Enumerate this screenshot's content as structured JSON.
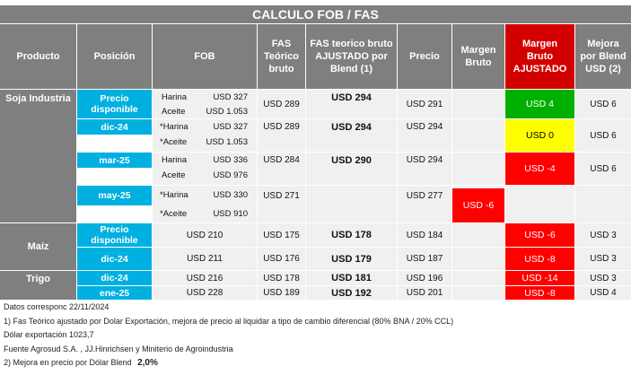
{
  "title": "CALCULO FOB / FAS",
  "headers": {
    "producto": "Producto",
    "posicion": "Posición",
    "fob": "FOB",
    "fas_teorico": "FAS Teórico bruto",
    "fas_ajustado": "FAS teorico bruto AJUSTADO por Blend (1)",
    "precio": "Precio",
    "margen_bruto": "Margen Bruto",
    "margen_ajustado": "Margen Bruto AJUSTADO",
    "mejora": "Mejora por Blend USD (2)"
  },
  "products": {
    "soja": "Soja Industria",
    "maiz": "Maíz",
    "trigo": "Trigo"
  },
  "rows": [
    {
      "posicion": "Precio disponible",
      "fob_harina_label": "Harina",
      "fob_harina": "USD 327",
      "fob_aceite_label": "Aceite",
      "fob_aceite": "USD 1.053",
      "fas": "USD 289",
      "fas_aj": "USD 294",
      "precio": "USD 291",
      "margen": "",
      "margen_aj": "USD 4",
      "mejora": "USD 6"
    },
    {
      "posicion": "dic-24",
      "fob_harina_label": "*Harina",
      "fob_harina": "USD 327",
      "fob_aceite_label": "*Aceite",
      "fob_aceite": "USD 1.053",
      "fas": "USD 289",
      "fas_aj": "USD 294",
      "precio": "USD 294",
      "margen": "",
      "margen_aj": "USD 0",
      "mejora": "USD 6"
    },
    {
      "posicion": "mar-25",
      "fob_harina_label": "Harina",
      "fob_harina": "USD 336",
      "fob_aceite_label": "Aceite",
      "fob_aceite": "USD 976",
      "fas": "USD 284",
      "fas_aj": "USD 290",
      "precio": "USD 294",
      "margen": "",
      "margen_aj": "USD -4",
      "mejora": "USD 6"
    },
    {
      "posicion": "may-25",
      "fob_harina_label": "*Harina",
      "fob_harina": "USD 330",
      "fob_aceite_label": "*Aceite",
      "fob_aceite": "USD 910",
      "fas": "USD 271",
      "fas_aj": "",
      "precio": "USD 277",
      "margen": "USD -6",
      "margen_aj": "",
      "mejora": ""
    },
    {
      "posicion": "Precio disponible",
      "fob": "USD 210",
      "fas": "USD 175",
      "fas_aj": "USD 178",
      "precio": "USD 184",
      "margen": "",
      "margen_aj": "USD -6",
      "mejora": "USD 3"
    },
    {
      "posicion": "dic-24",
      "fob": "USD 211",
      "fas": "USD 176",
      "fas_aj": "USD 179",
      "precio": "USD 187",
      "margen": "",
      "margen_aj": "USD -8",
      "mejora": "USD 3"
    },
    {
      "posicion": "dic-24",
      "fob": "USD 216",
      "fas": "USD 178",
      "fas_aj": "USD 181",
      "precio": "USD 196",
      "margen": "",
      "margen_aj": "USD -14",
      "mejora": "USD 3"
    },
    {
      "posicion": "ene-25",
      "fob": "USD 228",
      "fas": "USD 189",
      "fas_aj": "USD 192",
      "precio": "USD 201",
      "margen": "",
      "margen_aj": "USD -8",
      "mejora": "USD 4"
    }
  ],
  "notes": {
    "line1": "Datos corresponc 22/11/2024",
    "line2": "1) Fas Teórico ajustado por Dolar Exportación, mejora de precio al liquidar a tipo de cambio diferencial (80% BNA / 20% CCL)",
    "line3": "Dólar exportación 1023,7",
    "line4": "Fuente Agrosud S.A. , JJ.Hinrichsen y Miniterio de Agroindustria",
    "line5_label": "2) Mejora en precio por Dólar Blend",
    "line5_value": "2,0%"
  },
  "colors": {
    "header_gray": "#7f7f7f",
    "cyan": "#00b0e0",
    "green": "#00b000",
    "yellow": "#ffff00",
    "red": "#ff0000",
    "header_red": "#d40000"
  }
}
